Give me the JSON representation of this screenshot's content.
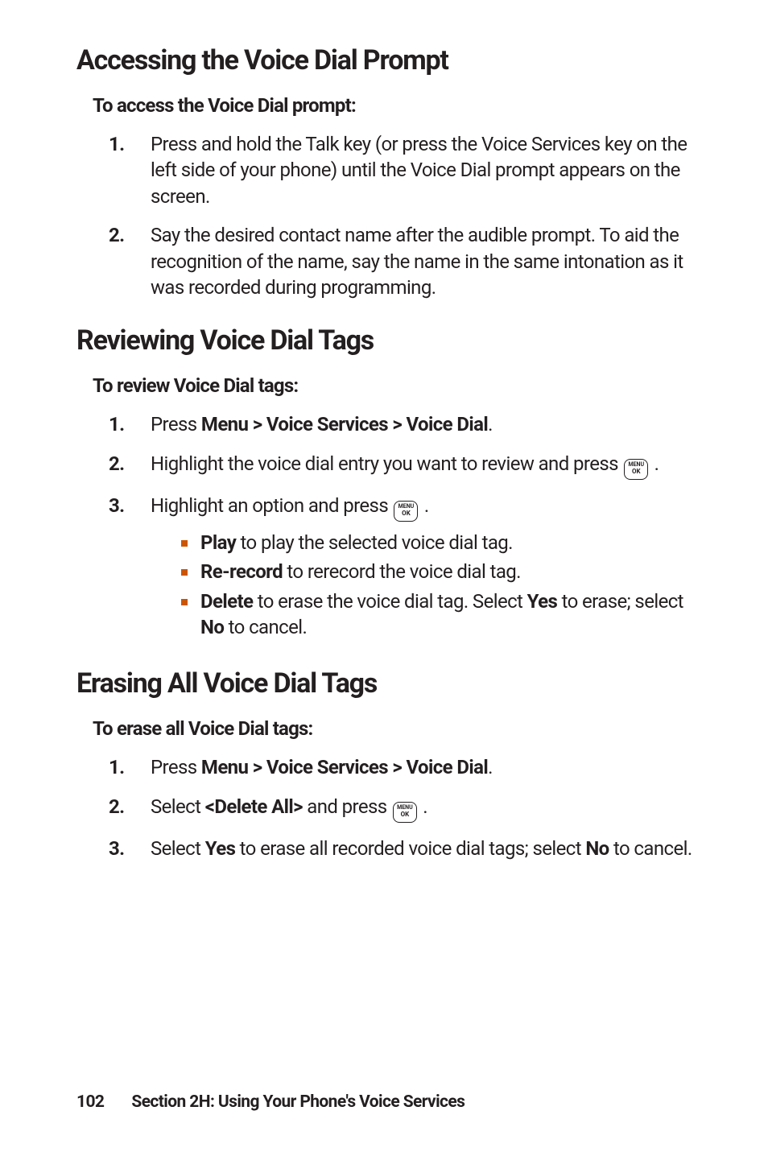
{
  "section1": {
    "heading": "Accessing the Voice Dial Prompt",
    "subhead": "To access the Voice Dial prompt:",
    "steps": [
      {
        "num": "1.",
        "body_text": "Press and hold the Talk key (or press the Voice Services key on the left side of your phone) until the Voice Dial prompt appears on  the screen."
      },
      {
        "num": "2.",
        "body_text": "Say the desired contact name after the audible prompt. To aid the recognition of the name, say the name in the same intonation as it was recorded during programming."
      }
    ]
  },
  "section2": {
    "heading": "Reviewing Voice Dial Tags",
    "subhead": "To review Voice Dial tags:",
    "step1_num": "1.",
    "step1_pre": "Press ",
    "step1_bold": "Menu > Voice Services > Voice Dial",
    "step1_post": ".",
    "step2_num": "2.",
    "step2_pre": "Highlight the voice dial entry you want to review and press ",
    "step2_post": " .",
    "step3_num": "3.",
    "step3_pre": "Highlight an option and press ",
    "step3_post": " .",
    "bullet1_bold": "Play",
    "bullet1_rest": " to play the selected voice dial tag.",
    "bullet2_bold": "Re-record",
    "bullet2_rest": " to rerecord the voice dial tag.",
    "bullet3_bold1": "Delete",
    "bullet3_mid": " to erase the voice dial tag. Select ",
    "bullet3_bold2": "Yes",
    "bullet3_mid2": " to erase; select ",
    "bullet3_bold3": "No",
    "bullet3_rest": " to cancel."
  },
  "section3": {
    "heading": "Erasing All Voice Dial Tags",
    "subhead": "To erase all Voice Dial tags:",
    "step1_num": "1.",
    "step1_pre": "Press ",
    "step1_bold": "Menu > Voice Services > Voice Dial",
    "step1_post": ".",
    "step2_num": "2.",
    "step2_pre": "Select ",
    "step2_bold": "<Delete All>",
    "step2_mid": " and press ",
    "step2_post": " .",
    "step3_num": "3.",
    "step3_pre": "Select ",
    "step3_bold1": "Yes",
    "step3_mid": " to erase all recorded voice dial tags; select ",
    "step3_bold2": "No",
    "step3_rest": " to cancel."
  },
  "icon": {
    "l1": "MENU",
    "l2": "OK"
  },
  "footer": {
    "page": "102",
    "title": "Section 2H: Using Your Phone's Voice Services"
  }
}
